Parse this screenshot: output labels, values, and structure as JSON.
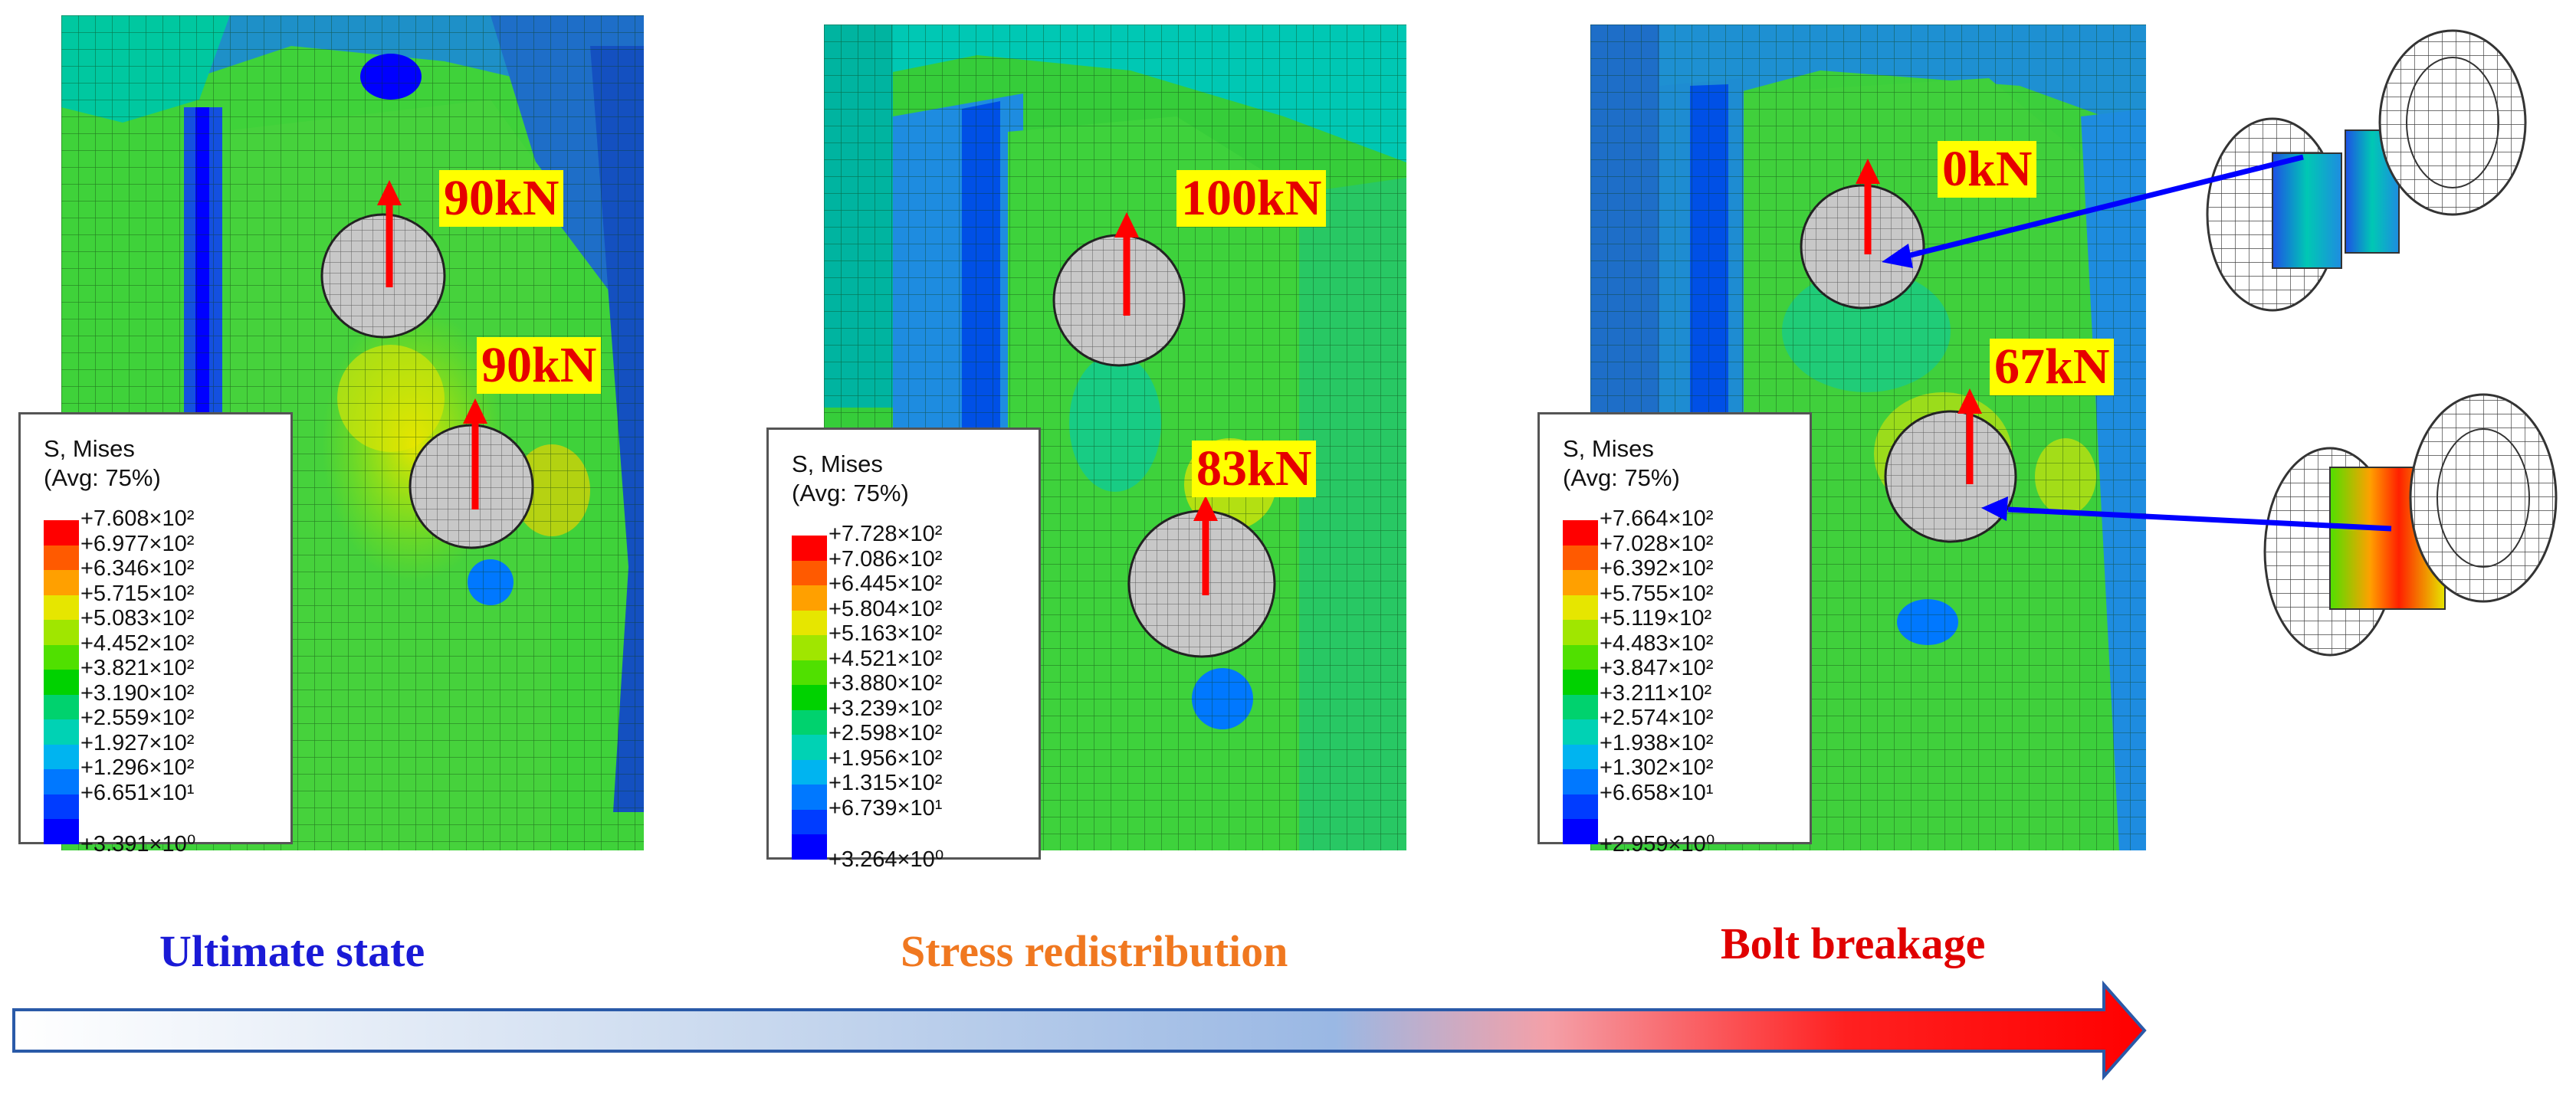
{
  "panels": [
    {
      "forces": [
        "90kN",
        "90kN"
      ],
      "legend": {
        "title_line1": "S, Mises",
        "title_line2": "(Avg: 75%)",
        "values": [
          "+7.608×10²",
          "+6.977×10²",
          "+6.346×10²",
          "+5.715×10²",
          "+5.083×10²",
          "+4.452×10²",
          "+3.821×10²",
          "+3.190×10²",
          "+2.559×10²",
          "+1.927×10²",
          "+1.296×10²",
          "+6.651×10¹",
          "+3.391×10⁰"
        ]
      }
    },
    {
      "forces": [
        "100kN",
        "83kN"
      ],
      "legend": {
        "title_line1": "S, Mises",
        "title_line2": "(Avg: 75%)",
        "values": [
          "+7.728×10²",
          "+7.086×10²",
          "+6.445×10²",
          "+5.804×10²",
          "+5.163×10²",
          "+4.521×10²",
          "+3.880×10²",
          "+3.239×10²",
          "+2.598×10²",
          "+1.956×10²",
          "+1.315×10²",
          "+6.739×10¹",
          "+3.264×10⁰"
        ]
      }
    },
    {
      "forces": [
        "0kN",
        "67kN"
      ],
      "legend": {
        "title_line1": "S, Mises",
        "title_line2": "(Avg: 75%)",
        "values": [
          "+7.664×10²",
          "+7.028×10²",
          "+6.392×10²",
          "+5.755×10²",
          "+5.119×10²",
          "+4.483×10²",
          "+3.847×10²",
          "+3.211×10²",
          "+2.574×10²",
          "+1.938×10²",
          "+1.302×10²",
          "+6.658×10¹",
          "+2.959×10⁰"
        ]
      }
    }
  ],
  "contour_colors": [
    "#ff0000",
    "#ff5a00",
    "#ffa000",
    "#e6e600",
    "#a0e600",
    "#50e000",
    "#00d200",
    "#00d26e",
    "#00d2b4",
    "#00b4f0",
    "#0078ff",
    "#003cff",
    "#0000ff"
  ],
  "stages": [
    {
      "label": "Ultimate state",
      "color": "#1a1ad6"
    },
    {
      "label": "Stress redistribution",
      "color": "#f07820"
    },
    {
      "label": "Bolt breakage",
      "color": "#e00000"
    }
  ]
}
